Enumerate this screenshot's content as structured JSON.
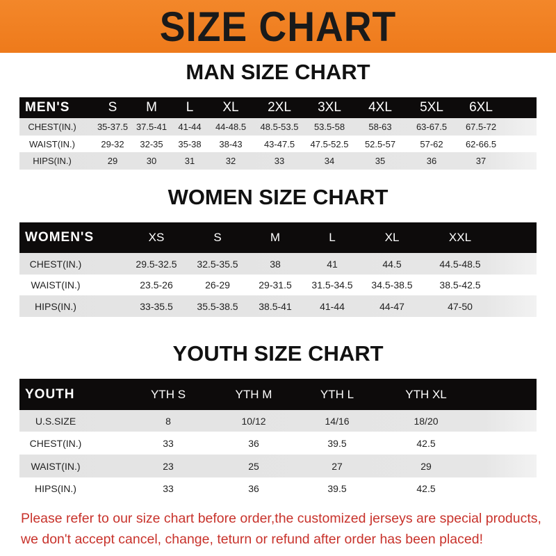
{
  "banner": {
    "title": "SIZE CHART",
    "color": "#ef801f"
  },
  "men": {
    "title": "MAN SIZE CHART",
    "header": "MEN'S",
    "sizes": [
      "S",
      "M",
      "L",
      "XL",
      "2XL",
      "3XL",
      "4XL",
      "5XL",
      "6XL"
    ],
    "rows": [
      {
        "label": "CHEST(IN.)",
        "values": [
          "35-37.5",
          "37.5-41",
          "41-44",
          "44-48.5",
          "48.5-53.5",
          "53.5-58",
          "58-63",
          "63-67.5",
          "67.5-72"
        ]
      },
      {
        "label": "WAIST(IN.)",
        "values": [
          "29-32",
          "32-35",
          "35-38",
          "38-43",
          "43-47.5",
          "47.5-52.5",
          "52.5-57",
          "57-62",
          "62-66.5"
        ]
      },
      {
        "label": "HIPS(IN.)",
        "values": [
          "29",
          "30",
          "31",
          "32",
          "33",
          "34",
          "35",
          "36",
          "37"
        ]
      }
    ]
  },
  "women": {
    "title": "WOMEN SIZE CHART",
    "header": "WOMEN'S",
    "sizes": [
      "XS",
      "S",
      "M",
      "L",
      "XL",
      "XXL"
    ],
    "rows": [
      {
        "label": "CHEST(IN.)",
        "values": [
          "29.5-32.5",
          "32.5-35.5",
          "38",
          "41",
          "44.5",
          "44.5-48.5"
        ]
      },
      {
        "label": "WAIST(IN.)",
        "values": [
          "23.5-26",
          "26-29",
          "29-31.5",
          "31.5-34.5",
          "34.5-38.5",
          "38.5-42.5"
        ]
      },
      {
        "label": "HIPS(IN.)",
        "values": [
          "33-35.5",
          "35.5-38.5",
          "38.5-41",
          "41-44",
          "44-47",
          "47-50"
        ]
      }
    ]
  },
  "youth": {
    "title": "YOUTH SIZE CHART",
    "header": "YOUTH",
    "sizes": [
      "YTH S",
      "YTH M",
      "YTH L",
      "YTH XL"
    ],
    "rows": [
      {
        "label": "U.S.SIZE",
        "values": [
          "8",
          "10/12",
          "14/16",
          "18/20"
        ]
      },
      {
        "label": "CHEST(IN.)",
        "values": [
          "33",
          "36",
          "39.5",
          "42.5"
        ]
      },
      {
        "label": "WAIST(IN.)",
        "values": [
          "23",
          "25",
          "27",
          "29"
        ]
      },
      {
        "label": "HIPS(IN.)",
        "values": [
          "33",
          "36",
          "39.5",
          "42.5"
        ]
      }
    ]
  },
  "footer": {
    "line1": "Please refer to our size chart before order,the customized jerseys are special products,",
    "line2": "we don't accept cancel, change, teturn or refund after order has been placed!",
    "color": "#c8322b"
  }
}
